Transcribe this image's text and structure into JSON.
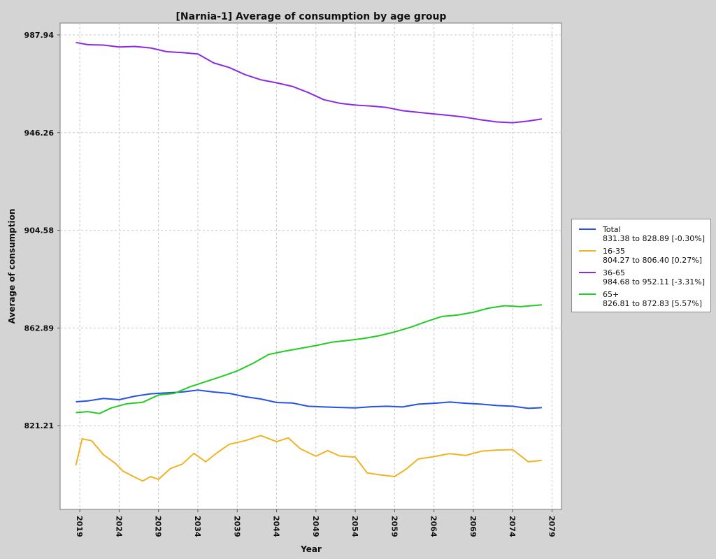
{
  "chart_data": {
    "type": "line",
    "title": "[Narnia-1] Average of consumption by age group",
    "xlabel": "Year",
    "ylabel": "Average of consumption",
    "xlim": [
      2016.5,
      2080.2
    ],
    "ylim": [
      785.5,
      993.0
    ],
    "x_ticks": [
      2019,
      2024,
      2029,
      2034,
      2039,
      2044,
      2049,
      2054,
      2059,
      2064,
      2069,
      2074,
      2079
    ],
    "y_ticks": [
      821.21,
      862.89,
      904.58,
      946.26,
      987.94
    ],
    "grid": true,
    "legend_position": "right",
    "series": [
      {
        "name": "Total",
        "range_label": "831.38 to 828.89 [-0.30%]",
        "color": "#2451e6",
        "x": [
          2018.5,
          2020,
          2022,
          2024,
          2026,
          2028,
          2030,
          2032,
          2034,
          2036,
          2038,
          2040,
          2042,
          2044,
          2046,
          2048,
          2050,
          2052,
          2054,
          2056,
          2058,
          2060,
          2062,
          2064,
          2066,
          2068,
          2070,
          2072,
          2074,
          2076,
          2077.7
        ],
        "values": [
          831.4,
          831.8,
          832.8,
          832.3,
          833.8,
          834.8,
          835.2,
          835.6,
          836.4,
          835.6,
          835.0,
          833.6,
          832.6,
          831.1,
          830.9,
          829.5,
          829.2,
          829.0,
          828.8,
          829.3,
          829.5,
          829.2,
          830.4,
          830.8,
          831.3,
          830.8,
          830.4,
          829.8,
          829.5,
          828.6,
          828.9
        ]
      },
      {
        "name": "16-35",
        "range_label": "804.27 to 806.40 [0.27%]",
        "color": "#f0b323",
        "x": [
          2018.5,
          2019.3,
          2020.5,
          2022,
          2023.5,
          2024.5,
          2026,
          2027,
          2028,
          2029,
          2030.5,
          2032,
          2033.5,
          2035,
          2036.5,
          2038,
          2040,
          2042,
          2044,
          2045.5,
          2047,
          2049,
          2050.5,
          2052,
          2054,
          2055.5,
          2057,
          2059,
          2060.5,
          2062,
          2064,
          2066,
          2068,
          2070,
          2072,
          2074,
          2076,
          2077.7
        ],
        "values": [
          804.3,
          815.6,
          814.8,
          808.8,
          805.2,
          801.8,
          799.2,
          797.6,
          799.5,
          798.3,
          802.9,
          804.8,
          809.4,
          805.8,
          809.8,
          813.3,
          814.8,
          817.0,
          814.4,
          816.0,
          811.4,
          808.2,
          810.6,
          808.3,
          807.8,
          801.1,
          800.3,
          799.5,
          802.8,
          807.0,
          808.0,
          809.3,
          808.5,
          810.3,
          810.8,
          811.0,
          805.8,
          806.4
        ]
      },
      {
        "name": "36-65",
        "range_label": "984.68 to 952.11 [-3.31%]",
        "color": "#8a2be2",
        "x": [
          2018.5,
          2020,
          2022,
          2024,
          2026,
          2028,
          2030,
          2032,
          2034,
          2036,
          2038,
          2040,
          2042,
          2044,
          2046,
          2048,
          2050,
          2052,
          2054,
          2056,
          2058,
          2060,
          2062,
          2064,
          2066,
          2068,
          2070,
          2072,
          2074,
          2076,
          2077.7
        ],
        "values": [
          984.7,
          983.8,
          983.6,
          982.8,
          983.0,
          982.4,
          980.8,
          980.4,
          979.8,
          976.0,
          974.0,
          971.0,
          968.8,
          967.5,
          966.0,
          963.4,
          960.3,
          958.8,
          958.0,
          957.6,
          957.0,
          955.6,
          954.9,
          954.2,
          953.6,
          952.8,
          951.7,
          950.8,
          950.5,
          951.2,
          952.1
        ]
      },
      {
        "name": "65+",
        "range_label": "826.81 to 872.83 [5.57%]",
        "color": "#22cc22",
        "x": [
          2018.5,
          2020,
          2021.5,
          2023,
          2025,
          2027,
          2029,
          2031,
          2033,
          2035,
          2037,
          2039,
          2041,
          2043,
          2045,
          2047,
          2049,
          2051,
          2053,
          2055,
          2057,
          2059,
          2061,
          2063,
          2065,
          2067,
          2069,
          2071,
          2073,
          2075,
          2077.7
        ],
        "values": [
          826.8,
          827.2,
          826.4,
          828.8,
          830.6,
          831.2,
          834.3,
          835.0,
          837.8,
          840.0,
          842.2,
          844.6,
          847.8,
          851.6,
          853.0,
          854.2,
          855.4,
          856.8,
          857.6,
          858.4,
          859.6,
          861.2,
          863.2,
          865.6,
          867.8,
          868.4,
          869.6,
          871.4,
          872.4,
          872.0,
          872.8
        ]
      }
    ]
  }
}
